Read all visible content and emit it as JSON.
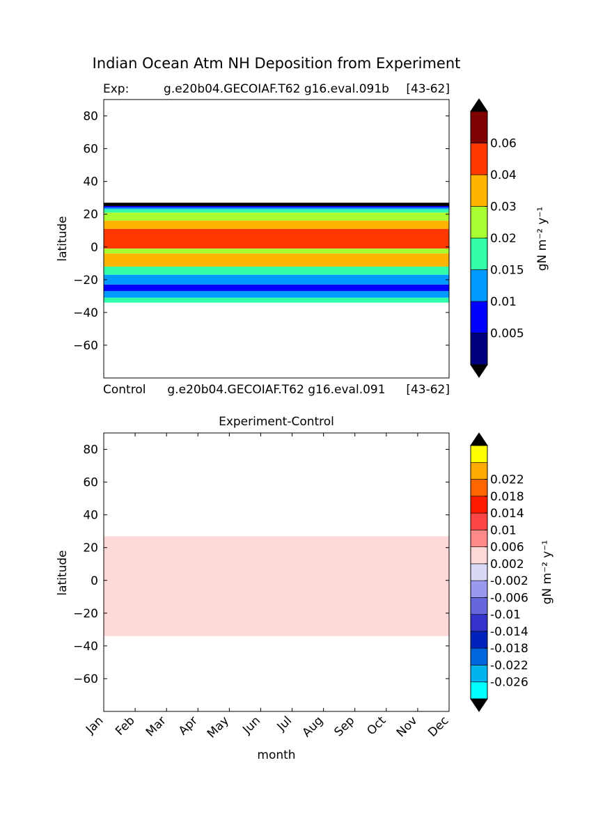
{
  "figure": {
    "suptitle": "Indian Ocean Atm NH Deposition from Experiment"
  },
  "chart_data": [
    {
      "type": "heatmap",
      "title_left": "Exp:",
      "title_center": "g.e20b04.GECOIAF.T62 g16.eval.091b",
      "title_right": "[43-62]",
      "xlabel": "",
      "ylabel": "latitude",
      "ylim": [
        -80,
        90
      ],
      "yticks": [
        "80",
        "60",
        "40",
        "20",
        "0",
        "−20",
        "−40",
        "−60"
      ],
      "ytick_values": [
        80,
        60,
        40,
        20,
        0,
        -20,
        -40,
        -60
      ],
      "data_lat_range": [
        -34,
        27
      ],
      "colorbar": {
        "label": "gN m⁻² y⁻¹",
        "levels": [
          0,
          0.005,
          0.01,
          0.015,
          0.02,
          0.03,
          0.04,
          0.06,
          0.07
        ],
        "tick_labels": [
          "0.005",
          "0.01",
          "0.015",
          "0.02",
          "0.03",
          "0.04",
          "0.06"
        ],
        "colors": [
          "#00007f",
          "#0000ff",
          "#0099ff",
          "#33ffaa",
          "#aaff33",
          "#ffb400",
          "#ff3800",
          "#7f0000"
        ],
        "extend_colors": [
          "#000000",
          "#000000"
        ]
      },
      "bands": [
        {
          "lat_top": 27,
          "lat_bottom": 25,
          "color": "#000000"
        },
        {
          "lat_top": 25,
          "lat_bottom": 24,
          "color": "#0000ff"
        },
        {
          "lat_top": 24,
          "lat_bottom": 23,
          "color": "#0099ff"
        },
        {
          "lat_top": 23,
          "lat_bottom": 21,
          "color": "#33ffaa"
        },
        {
          "lat_top": 21,
          "lat_bottom": 16,
          "color": "#aaff33"
        },
        {
          "lat_top": 16,
          "lat_bottom": 11,
          "color": "#ffb400"
        },
        {
          "lat_top": 11,
          "lat_bottom": -1,
          "color": "#ff3800"
        },
        {
          "lat_top": -1,
          "lat_bottom": -4,
          "color": "#aaff33"
        },
        {
          "lat_top": -4,
          "lat_bottom": -12,
          "color": "#ffb400"
        },
        {
          "lat_top": -12,
          "lat_bottom": -17,
          "color": "#33ffaa"
        },
        {
          "lat_top": -17,
          "lat_bottom": -23,
          "color": "#0099ff"
        },
        {
          "lat_top": -23,
          "lat_bottom": -27,
          "color": "#0000ff"
        },
        {
          "lat_top": -27,
          "lat_bottom": -31,
          "color": "#0099ff"
        },
        {
          "lat_top": -31,
          "lat_bottom": -34,
          "color": "#33ffaa"
        }
      ]
    },
    {
      "type": "heatmap",
      "title_left": "Control",
      "title_center": "g.e20b04.GECOIAF.T62 g16.eval.091",
      "title_right": "[43-62]",
      "title": "Experiment-Control",
      "xlabel": "month",
      "ylabel": "latitude",
      "ylim": [
        -80,
        90
      ],
      "yticks": [
        "80",
        "60",
        "40",
        "20",
        "0",
        "−20",
        "−40",
        "−60"
      ],
      "ytick_values": [
        80,
        60,
        40,
        20,
        0,
        -20,
        -40,
        -60
      ],
      "xticks": [
        "Jan",
        "Feb",
        "Mar",
        "Apr",
        "May",
        "Jun",
        "Jul",
        "Aug",
        "Sep",
        "Oct",
        "Nov",
        "Dec"
      ],
      "data_lat_range": [
        -34,
        27
      ],
      "fill_value_color": "#ffd9d9",
      "colorbar": {
        "label": "gN m⁻² y⁻¹",
        "levels": [
          -0.03,
          -0.026,
          -0.022,
          -0.018,
          -0.014,
          -0.01,
          -0.006,
          -0.002,
          0.002,
          0.006,
          0.01,
          0.014,
          0.018,
          0.022,
          0.026
        ],
        "tick_labels": [
          "-0.026",
          "-0.022",
          "-0.018",
          "-0.014",
          "-0.01",
          "-0.006",
          "-0.002",
          "0.002",
          "0.006",
          "0.01",
          "0.014",
          "0.018",
          "0.022"
        ],
        "colors": [
          "#00ffff",
          "#00b4ee",
          "#0066dd",
          "#0022bb",
          "#3333cc",
          "#6666dd",
          "#9999ee",
          "#d9d9f5",
          "#ffd9d9",
          "#ff8888",
          "#ff4444",
          "#ff1a00",
          "#ff6600",
          "#ffaa00",
          "#ffff00"
        ],
        "extend_colors": [
          "#000000",
          "#000000"
        ]
      }
    }
  ]
}
